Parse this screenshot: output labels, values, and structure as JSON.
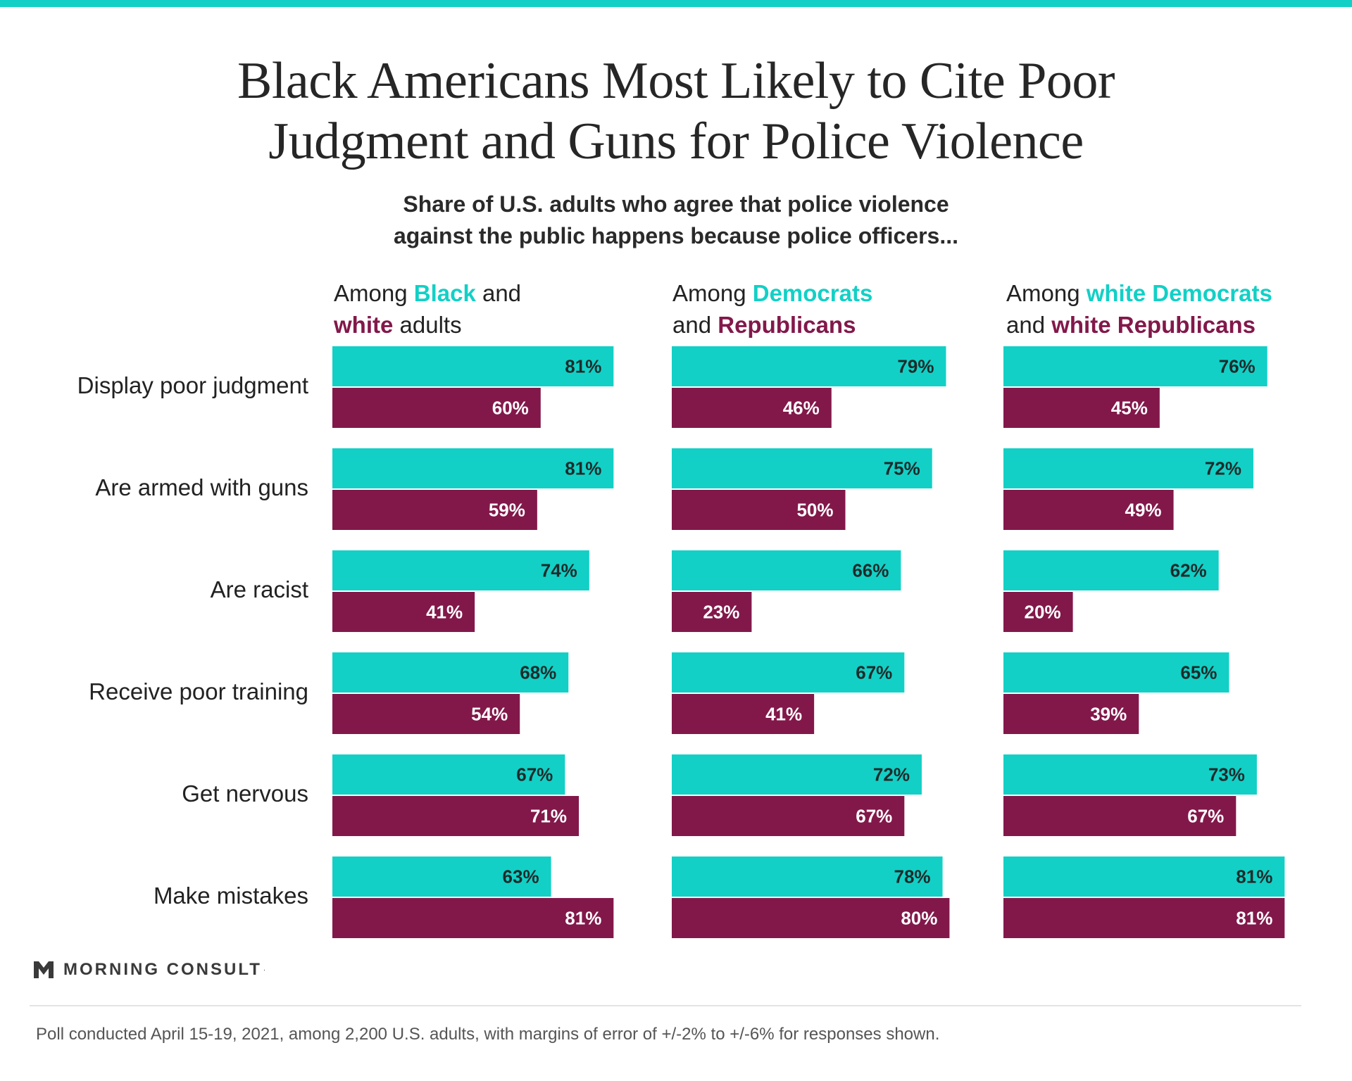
{
  "colors": {
    "accent": "#12d0c6",
    "secondary": "#82184a",
    "top_bar": "#12d0c6",
    "bar_text_on_teal": "#1f2a2a",
    "bar_text_on_purple": "#ffffff"
  },
  "title_lines": [
    "Black Americans Most Likely to Cite Poor",
    "Judgment and Guns for Police Violence"
  ],
  "subtitle_lines": [
    "Share of U.S. adults who agree that police violence",
    "against the public happens because police officers..."
  ],
  "panels": [
    {
      "heading_line1": {
        "pre": "Among ",
        "a": "Black",
        "post": " and"
      },
      "heading_line2": {
        "b": "white",
        "post": " adults"
      }
    },
    {
      "heading_line1": {
        "pre": "Among ",
        "a": "Democrats",
        "post": ""
      },
      "heading_line2": {
        "pre": "and ",
        "b": "Republicans",
        "post": ""
      }
    },
    {
      "heading_line1": {
        "pre": "Among ",
        "a": "white Democrats",
        "post": ""
      },
      "heading_line2": {
        "pre": "and ",
        "b": "white Republicans",
        "post": ""
      }
    }
  ],
  "chart_data": {
    "type": "bar",
    "orientation": "horizontal",
    "categories": [
      "Display poor judgment",
      "Are armed with guns",
      "Are racist",
      "Receive poor training",
      "Get nervous",
      "Make mistakes"
    ],
    "value_unit": "%",
    "xlim": [
      0,
      100
    ],
    "panels": [
      {
        "series": [
          {
            "name": "Black",
            "color": "#12d0c6",
            "values": [
              81,
              81,
              74,
              68,
              67,
              63
            ]
          },
          {
            "name": "white",
            "color": "#82184a",
            "values": [
              60,
              59,
              41,
              54,
              71,
              81
            ]
          }
        ]
      },
      {
        "series": [
          {
            "name": "Democrats",
            "color": "#12d0c6",
            "values": [
              79,
              75,
              66,
              67,
              72,
              78
            ]
          },
          {
            "name": "Republicans",
            "color": "#82184a",
            "values": [
              46,
              50,
              23,
              41,
              67,
              80
            ]
          }
        ]
      },
      {
        "series": [
          {
            "name": "white Democrats",
            "color": "#12d0c6",
            "values": [
              76,
              72,
              62,
              65,
              73,
              81
            ]
          },
          {
            "name": "white Republicans",
            "color": "#82184a",
            "values": [
              45,
              49,
              20,
              39,
              67,
              81
            ]
          }
        ]
      }
    ]
  },
  "logo": {
    "name": "MORNING CONSULT",
    "mark": "·"
  },
  "footnote": "Poll conducted April 15-19, 2021, among 2,200 U.S. adults, with margins of error of +/-2% to +/-6% for responses shown."
}
